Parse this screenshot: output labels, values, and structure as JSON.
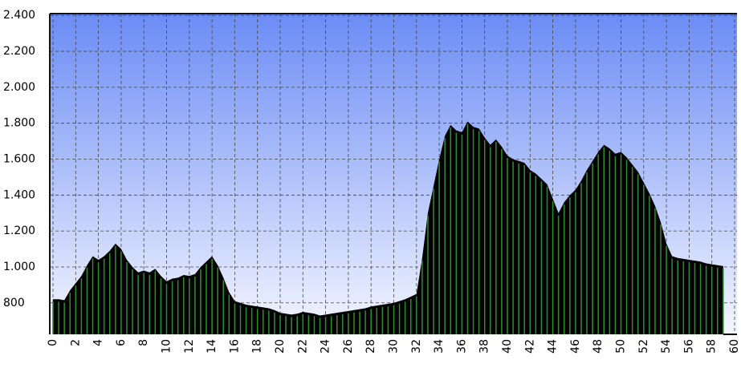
{
  "chart_data": {
    "type": "area",
    "color": "#000000",
    "stripe_color": "#2f8f2f",
    "grid": true,
    "x": [
      0,
      0.5,
      1,
      1.5,
      2,
      2.5,
      3,
      3.5,
      4,
      4.5,
      5,
      5.5,
      6,
      6.5,
      7,
      7.5,
      8,
      8.5,
      9,
      9.5,
      10,
      10.5,
      11,
      11.5,
      12,
      12.5,
      13,
      13.5,
      14,
      14.5,
      15,
      15.5,
      16,
      16.5,
      17,
      17.5,
      18,
      18.5,
      19,
      19.5,
      20,
      20.5,
      21,
      21.5,
      22,
      22.5,
      23,
      23.5,
      24,
      24.5,
      25,
      25.5,
      26,
      26.5,
      27,
      27.5,
      28,
      28.5,
      29,
      29.5,
      30,
      30.5,
      31,
      31.5,
      32,
      32.5,
      33,
      33.5,
      34,
      34.5,
      35,
      35.5,
      36,
      36.5,
      37,
      37.5,
      38,
      38.5,
      39,
      39.5,
      40,
      40.5,
      41,
      41.5,
      42,
      42.5,
      43,
      43.5,
      44,
      44.5,
      45,
      45.5,
      46,
      46.5,
      47,
      47.5,
      48,
      48.5,
      49,
      49.5,
      50,
      50.5,
      51,
      51.5,
      52,
      52.5,
      53,
      53.5,
      54,
      54.5,
      55,
      55.5,
      56,
      56.5,
      57,
      57.5,
      58,
      58.5,
      59
    ],
    "values": [
      820,
      820,
      815,
      870,
      910,
      950,
      1010,
      1060,
      1040,
      1060,
      1090,
      1130,
      1100,
      1040,
      1000,
      970,
      980,
      970,
      990,
      950,
      920,
      935,
      940,
      955,
      950,
      960,
      1000,
      1030,
      1060,
      1010,
      940,
      860,
      810,
      800,
      790,
      785,
      780,
      775,
      770,
      760,
      745,
      740,
      735,
      740,
      750,
      745,
      740,
      730,
      735,
      740,
      745,
      750,
      755,
      760,
      765,
      770,
      780,
      785,
      790,
      795,
      800,
      810,
      820,
      835,
      850,
      1050,
      1300,
      1450,
      1600,
      1730,
      1790,
      1760,
      1750,
      1810,
      1780,
      1770,
      1720,
      1680,
      1710,
      1670,
      1620,
      1600,
      1590,
      1580,
      1540,
      1520,
      1490,
      1460,
      1380,
      1300,
      1360,
      1400,
      1430,
      1480,
      1540,
      1590,
      1640,
      1680,
      1660,
      1630,
      1640,
      1610,
      1570,
      1530,
      1470,
      1410,
      1340,
      1250,
      1130,
      1060,
      1050,
      1045,
      1040,
      1035,
      1030,
      1020,
      1015,
      1010,
      1005
    ],
    "xlim": [
      0,
      60
    ],
    "xticks": [
      0,
      2,
      4,
      6,
      8,
      10,
      12,
      14,
      16,
      18,
      20,
      22,
      24,
      26,
      28,
      30,
      32,
      34,
      36,
      38,
      40,
      42,
      44,
      46,
      48,
      50,
      52,
      54,
      56,
      58,
      60
    ],
    "ylim": [
      625,
      2410
    ],
    "yticks": [
      800,
      {
        "value": 1000,
        "label": "1.000"
      },
      {
        "value": 1200,
        "label": "1.200"
      },
      {
        "value": 1400,
        "label": "1.400"
      },
      {
        "value": 1600,
        "label": "1.600"
      },
      {
        "value": 1800,
        "label": "1.800"
      },
      {
        "value": 2000,
        "label": "2.000"
      },
      {
        "value": 2200,
        "label": "2.200"
      },
      {
        "value": 2400,
        "label": "2.400"
      }
    ]
  }
}
